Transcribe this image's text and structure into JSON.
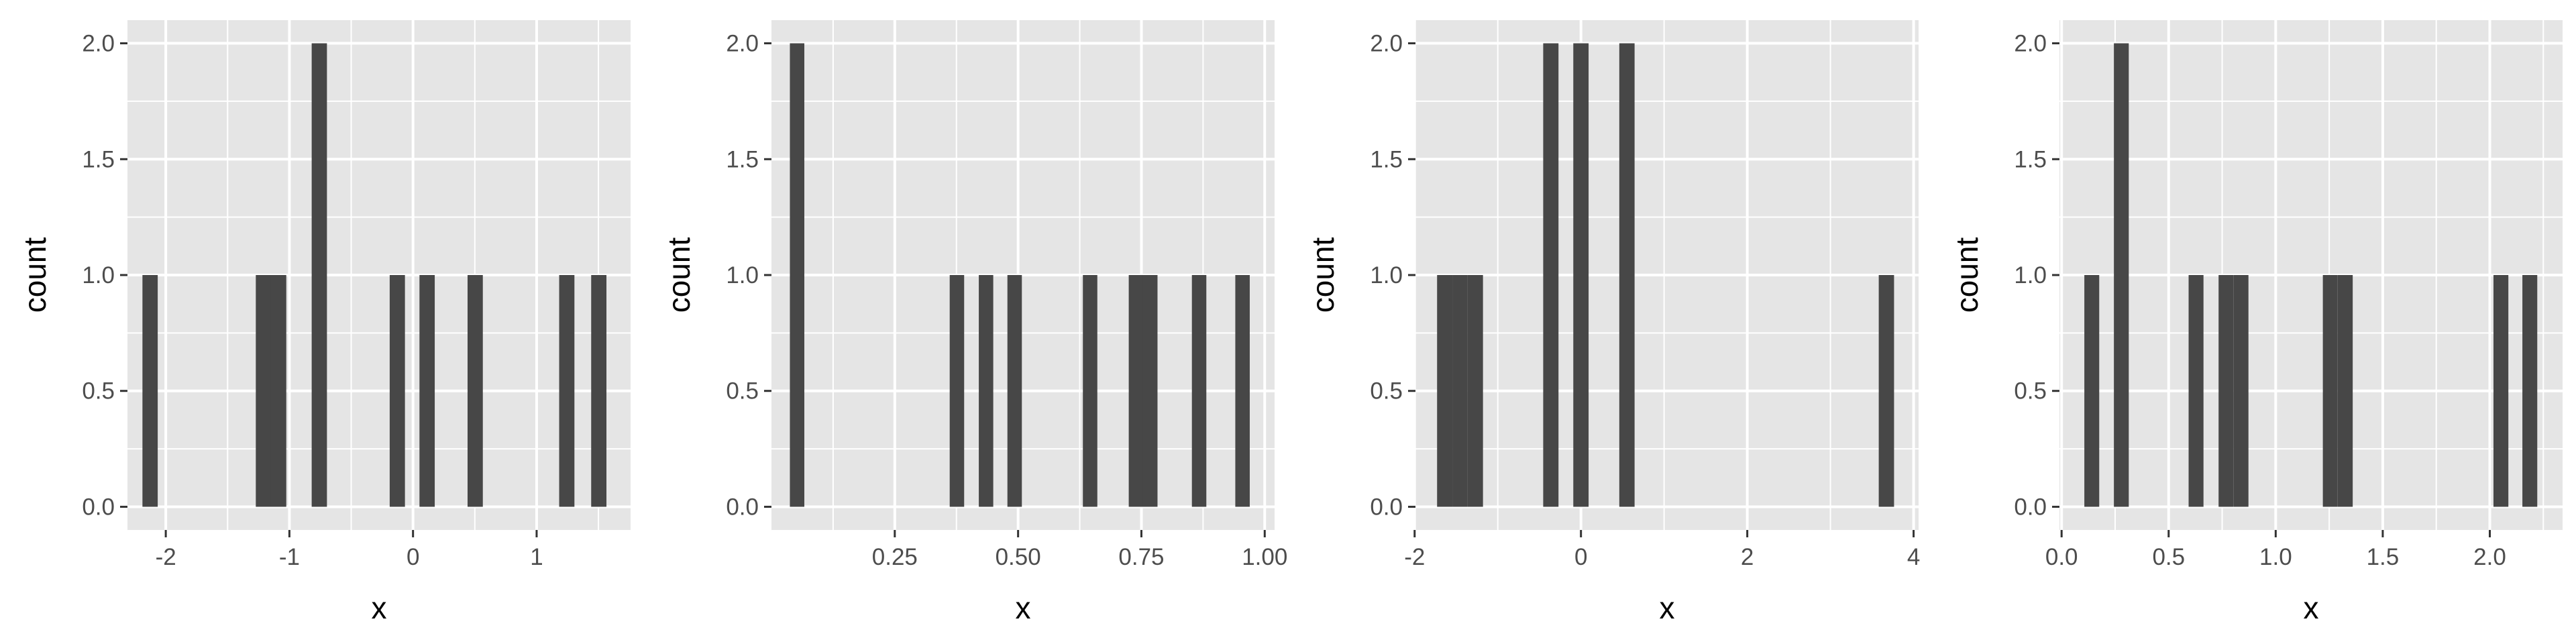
{
  "style": {
    "panel_background": "#e5e5e5",
    "grid_color": "#ffffff",
    "bar_color": "#474747",
    "tick_color": "#333333",
    "tick_label_color": "#4d4d4d"
  },
  "chart_data": [
    {
      "type": "bar",
      "xlabel": "x",
      "ylabel": "count",
      "xlim": [
        -2.31,
        1.76
      ],
      "ylim": [
        -0.1,
        2.1
      ],
      "x_ticks": [
        -2,
        -1,
        0,
        1
      ],
      "x_tick_labels": [
        "-2",
        "-1",
        "0",
        "1"
      ],
      "y_ticks": [
        0,
        0.5,
        1,
        1.5,
        2
      ],
      "y_tick_labels": [
        "0.0",
        "0.5",
        "1.0",
        "1.5",
        "2.0"
      ],
      "bin_width": 0.1235,
      "bins": [
        {
          "x": -2.127,
          "count": 1
        },
        {
          "x": -1.21,
          "count": 1
        },
        {
          "x": -1.087,
          "count": 1
        },
        {
          "x": -0.758,
          "count": 2
        },
        {
          "x": -0.127,
          "count": 1
        },
        {
          "x": 0.114,
          "count": 1
        },
        {
          "x": 0.503,
          "count": 1
        },
        {
          "x": 1.244,
          "count": 1
        },
        {
          "x": 1.503,
          "count": 1
        }
      ]
    },
    {
      "type": "bar",
      "xlabel": "x",
      "ylabel": "count",
      "xlim": [
        0.0,
        1.02
      ],
      "ylim": [
        -0.1,
        2.1
      ],
      "x_ticks": [
        0.25,
        0.5,
        0.75,
        1.0
      ],
      "x_tick_labels": [
        "0.25",
        "0.50",
        "0.75",
        "1.00"
      ],
      "y_ticks": [
        0,
        0.5,
        1,
        1.5,
        2
      ],
      "y_tick_labels": [
        "0.0",
        "0.5",
        "1.0",
        "1.5",
        "2.0"
      ],
      "bin_width": 0.0293,
      "bins": [
        {
          "x": 0.052,
          "count": 2
        },
        {
          "x": 0.376,
          "count": 1
        },
        {
          "x": 0.435,
          "count": 1
        },
        {
          "x": 0.493,
          "count": 1
        },
        {
          "x": 0.646,
          "count": 1
        },
        {
          "x": 0.739,
          "count": 1
        },
        {
          "x": 0.768,
          "count": 1
        },
        {
          "x": 0.867,
          "count": 1
        },
        {
          "x": 0.955,
          "count": 1
        }
      ]
    },
    {
      "type": "bar",
      "xlabel": "x",
      "ylabel": "count",
      "xlim": [
        -1.99,
        4.06
      ],
      "ylim": [
        -0.1,
        2.1
      ],
      "x_ticks": [
        -2,
        0,
        2,
        4
      ],
      "x_tick_labels": [
        "-2",
        "0",
        "2",
        "4"
      ],
      "y_ticks": [
        0,
        0.5,
        1,
        1.5,
        2
      ],
      "y_tick_labels": [
        "0.0",
        "0.5",
        "1.0",
        "1.5",
        "2.0"
      ],
      "bin_width": 0.184,
      "bins": [
        {
          "x": -1.638,
          "count": 1
        },
        {
          "x": -1.454,
          "count": 1
        },
        {
          "x": -1.27,
          "count": 1
        },
        {
          "x": -0.362,
          "count": 2
        },
        {
          "x": 0.0,
          "count": 2
        },
        {
          "x": 0.553,
          "count": 2
        },
        {
          "x": 3.673,
          "count": 1
        }
      ]
    },
    {
      "type": "bar",
      "xlabel": "x",
      "ylabel": "count",
      "xlim": [
        -0.01,
        2.34
      ],
      "ylim": [
        -0.1,
        2.1
      ],
      "x_ticks": [
        0.0,
        0.5,
        1.0,
        1.5,
        2.0
      ],
      "x_tick_labels": [
        "0.0",
        "0.5",
        "1.0",
        "1.5",
        "2.0"
      ],
      "y_ticks": [
        0,
        0.5,
        1,
        1.5,
        2
      ],
      "y_tick_labels": [
        "0.0",
        "0.5",
        "1.0",
        "1.5",
        "2.0"
      ],
      "bin_width": 0.0695,
      "bins": [
        {
          "x": 0.141,
          "count": 1
        },
        {
          "x": 0.279,
          "count": 2
        },
        {
          "x": 0.628,
          "count": 1
        },
        {
          "x": 0.768,
          "count": 1
        },
        {
          "x": 0.838,
          "count": 1
        },
        {
          "x": 1.255,
          "count": 1
        },
        {
          "x": 1.325,
          "count": 1
        },
        {
          "x": 2.052,
          "count": 1
        },
        {
          "x": 2.187,
          "count": 1
        }
      ]
    }
  ]
}
